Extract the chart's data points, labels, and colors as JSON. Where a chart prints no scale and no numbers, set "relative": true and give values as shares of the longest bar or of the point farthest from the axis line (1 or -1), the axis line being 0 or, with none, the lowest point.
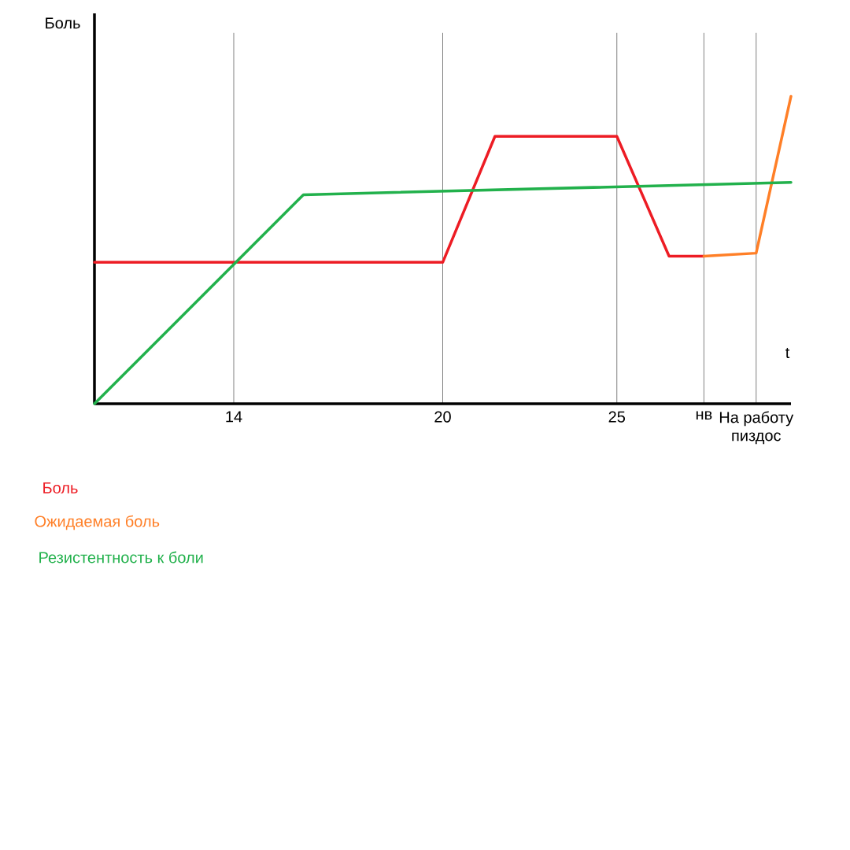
{
  "chart_data": {
    "type": "line",
    "relative": true,
    "xlabel": "t",
    "ylabel": "Боль",
    "xlim": [
      10,
      30
    ],
    "xticks": [
      14,
      20,
      25,
      {
        "value": 27.5,
        "label": "нв"
      },
      {
        "value": 29,
        "label": "На работу пиздос"
      }
    ],
    "series": [
      {
        "name": "Боль",
        "color": "#ed1c24",
        "x": [
          10,
          20,
          21.5,
          25,
          26.5,
          27.5
        ],
        "values": [
          0.46,
          0.46,
          0.87,
          0.87,
          0.48,
          0.48
        ]
      },
      {
        "name": "Ожидаемая боль",
        "color": "#ff7f27",
        "x": [
          27.5,
          29,
          30
        ],
        "values": [
          0.48,
          0.49,
          1.0
        ]
      },
      {
        "name": "Резистентность к боли",
        "color": "#22b14c",
        "x": [
          10,
          16,
          30
        ],
        "values": [
          0,
          0.68,
          0.72
        ]
      }
    ],
    "ref_lines": [
      {
        "axis": "x",
        "value": 14,
        "color": "#000000"
      },
      {
        "axis": "x",
        "value": 20,
        "color": "#000000"
      },
      {
        "axis": "x",
        "value": 25,
        "color": "#000000"
      },
      {
        "axis": "x",
        "value": 27.5,
        "color": "#000000"
      },
      {
        "axis": "x",
        "value": 29,
        "color": "#000000"
      }
    ],
    "grid": false,
    "marker": "none",
    "line_style": "solid"
  }
}
